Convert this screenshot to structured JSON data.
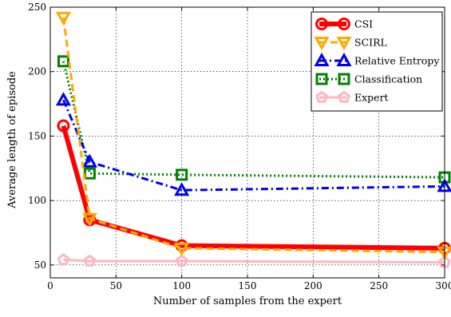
{
  "chart_data": {
    "type": "line",
    "title": "",
    "xlabel": "Number of samples from the expert",
    "ylabel": "Average length of episode",
    "xlim": [
      0,
      300
    ],
    "ylim": [
      40,
      250
    ],
    "xticks": [
      0,
      50,
      100,
      150,
      200,
      250,
      300
    ],
    "yticks": [
      50,
      100,
      150,
      200,
      250
    ],
    "grid": true,
    "legend_position": "top-right",
    "series": [
      {
        "name": "CSI",
        "color": "#ff0000",
        "marker": "circle",
        "line_style": "solid",
        "x": [
          10,
          30,
          100,
          300
        ],
        "y": [
          158,
          85,
          65,
          63
        ]
      },
      {
        "name": "SCIRL",
        "color": "#ffaa00",
        "marker": "triangle-down",
        "line_style": "dashed",
        "x": [
          10,
          30,
          100,
          300
        ],
        "y": [
          242,
          86,
          63,
          60
        ]
      },
      {
        "name": "Relative Entropy",
        "color": "#0000ee",
        "marker": "triangle-up",
        "line_style": "dashdot",
        "x": [
          10,
          30,
          100,
          300
        ],
        "y": [
          178,
          130,
          108,
          111
        ]
      },
      {
        "name": "Classification",
        "color": "#008000",
        "marker": "square",
        "line_style": "dotted",
        "x": [
          10,
          30,
          100,
          300
        ],
        "y": [
          208,
          121,
          120,
          118
        ]
      },
      {
        "name": "Expert",
        "color": "#ffb6c1",
        "marker": "pentagon",
        "line_style": "solid",
        "x": [
          10,
          30,
          100,
          300
        ],
        "y": [
          54,
          53,
          53,
          52
        ]
      }
    ]
  }
}
